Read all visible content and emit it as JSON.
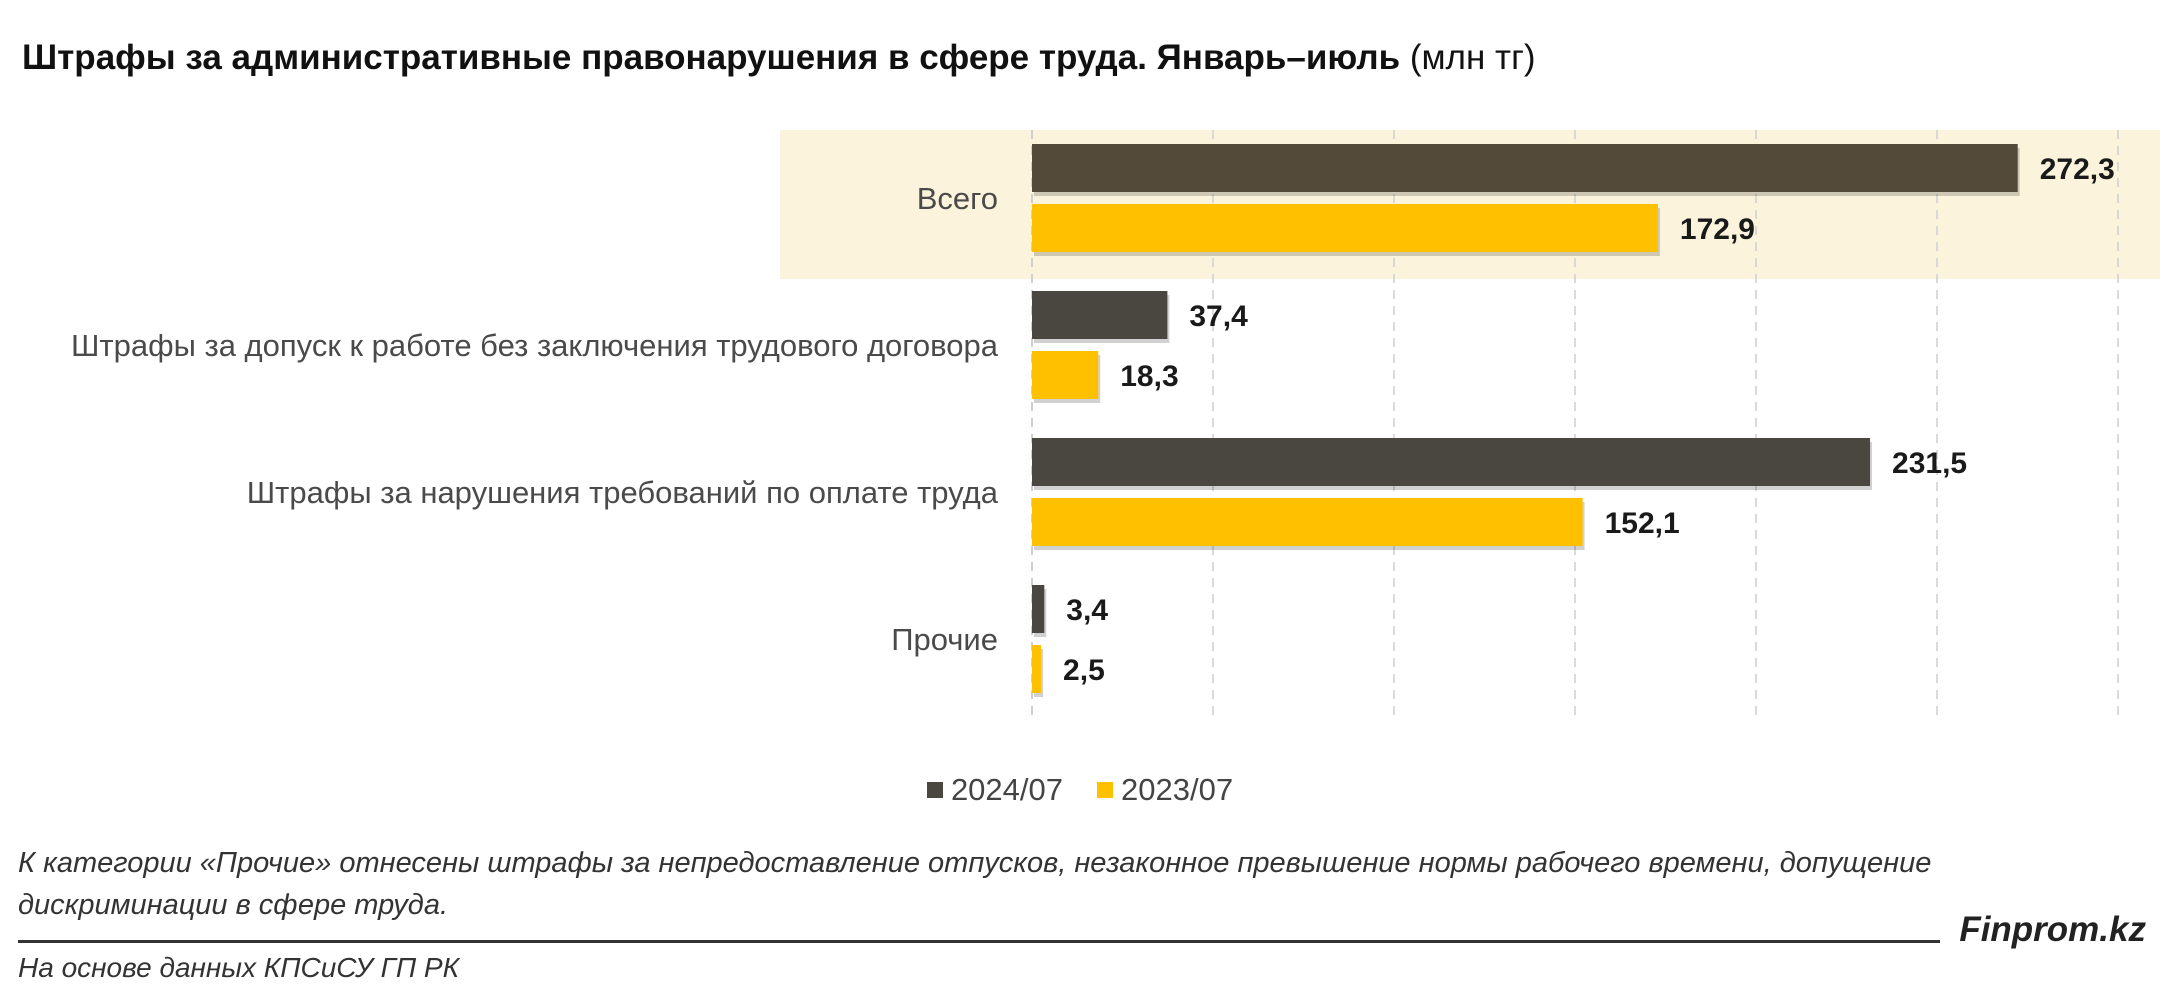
{
  "title": {
    "main": "Штрафы за административные правонарушения в сфере труда. Январь–июль",
    "unit": "(млн тг)"
  },
  "colors": {
    "series_2024": "#4a4640",
    "series_2024_total": "#544a3a",
    "series_2023": "#ffc000",
    "highlight_band": "#fbf3dc",
    "grid": "#cfcfcf"
  },
  "chart_data": {
    "type": "bar",
    "orientation": "horizontal",
    "categories": [
      "Всего",
      "Штрафы за допуск к работе без заключения трудового договора",
      "Штрафы за нарушения требований по оплате труда",
      "Прочие"
    ],
    "series": [
      {
        "name": "2024/07",
        "values": [
          272.3,
          37.4,
          231.5,
          3.4
        ],
        "labels": [
          "272,3",
          "37,4",
          "231,5",
          "3,4"
        ]
      },
      {
        "name": "2023/07",
        "values": [
          172.9,
          18.3,
          152.1,
          2.5
        ],
        "labels": [
          "172,9",
          "18,3",
          "152,1",
          "2,5"
        ]
      }
    ],
    "xlim": [
      0,
      300
    ],
    "grid": true,
    "legend_position": "bottom",
    "highlighted_category": "Всего"
  },
  "footnote": "К категории «Прочие» отнесены штрафы за непредоставление отпусков, незаконное превышение нормы рабочего времени, допущение дискриминации в сфере труда.",
  "brand": "Finprom.kz",
  "source": "На основе данных КПСиСУ ГП РК"
}
